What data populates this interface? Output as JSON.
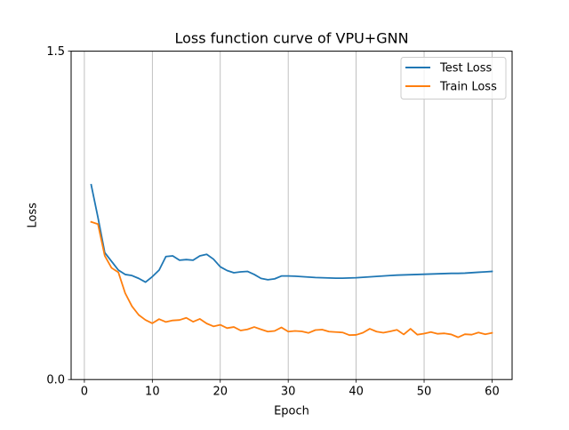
{
  "chart_data": {
    "type": "line",
    "title": "Loss function curve of VPU+GNN",
    "xlabel": "Epoch",
    "ylabel": "Loss",
    "xlim": [
      -1.95,
      62.95
    ],
    "ylim": [
      0.0,
      1.5
    ],
    "xticks": [
      0,
      10,
      20,
      30,
      40,
      50,
      60
    ],
    "yticks": [
      0.0,
      1.5
    ],
    "ytick_labels": [
      "0.0",
      "1.5"
    ],
    "grid": "vertical at x ticks",
    "legend_position": "top-right",
    "x": [
      1,
      2,
      3,
      4,
      5,
      6,
      7,
      8,
      9,
      10,
      11,
      12,
      13,
      14,
      15,
      16,
      17,
      18,
      19,
      20,
      21,
      22,
      23,
      24,
      25,
      26,
      27,
      28,
      29,
      30,
      31,
      32,
      33,
      34,
      35,
      36,
      37,
      38,
      39,
      40,
      41,
      42,
      43,
      44,
      45,
      46,
      47,
      48,
      49,
      50,
      51,
      52,
      53,
      54,
      55,
      56,
      57,
      58,
      59,
      60
    ],
    "series": [
      {
        "name": "Test Loss",
        "color": "#1f77b4",
        "values": [
          0.89,
          0.74,
          0.58,
          0.54,
          0.5,
          0.48,
          0.475,
          0.462,
          0.445,
          0.47,
          0.5,
          0.562,
          0.565,
          0.545,
          0.548,
          0.545,
          0.565,
          0.572,
          0.55,
          0.515,
          0.498,
          0.488,
          0.492,
          0.494,
          0.48,
          0.462,
          0.456,
          0.46,
          0.473,
          0.473,
          0.472,
          0.47,
          0.468,
          0.466,
          0.465,
          0.464,
          0.463,
          0.463,
          0.464,
          0.465,
          0.467,
          0.469,
          0.471,
          0.473,
          0.475,
          0.477,
          0.478,
          0.479,
          0.48,
          0.481,
          0.482,
          0.483,
          0.484,
          0.485,
          0.485,
          0.486,
          0.488,
          0.49,
          0.492,
          0.494
        ]
      },
      {
        "name": "Train Loss",
        "color": "#ff7f0e",
        "values": [
          0.72,
          0.71,
          0.565,
          0.51,
          0.49,
          0.395,
          0.335,
          0.295,
          0.272,
          0.257,
          0.276,
          0.263,
          0.27,
          0.272,
          0.282,
          0.264,
          0.277,
          0.256,
          0.243,
          0.25,
          0.235,
          0.24,
          0.224,
          0.229,
          0.24,
          0.229,
          0.219,
          0.222,
          0.238,
          0.219,
          0.222,
          0.22,
          0.213,
          0.226,
          0.228,
          0.219,
          0.217,
          0.215,
          0.203,
          0.204,
          0.214,
          0.232,
          0.219,
          0.214,
          0.22,
          0.227,
          0.206,
          0.232,
          0.205,
          0.21,
          0.217,
          0.209,
          0.211,
          0.206,
          0.193,
          0.207,
          0.205,
          0.215,
          0.207,
          0.213
        ]
      }
    ]
  }
}
